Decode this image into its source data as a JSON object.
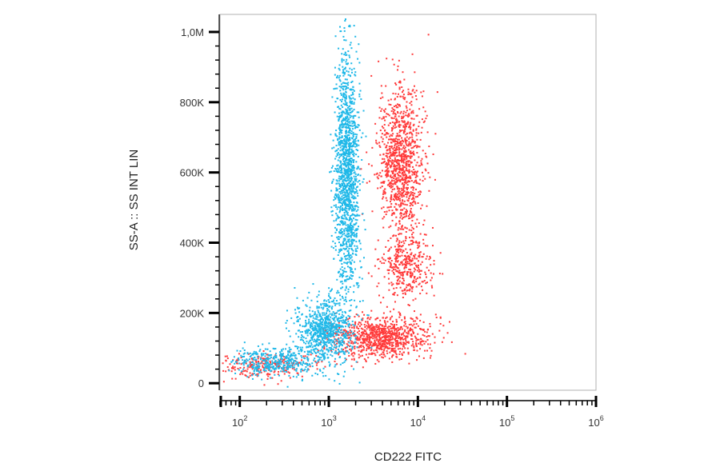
{
  "chart_data": {
    "type": "scatter",
    "title": "",
    "xlabel": "CD222 FITC",
    "ylabel": "SS-A :: SS INT LIN",
    "x_scale": "log",
    "xlim": [
      60,
      1000000
    ],
    "ylim": [
      -20000,
      1050000
    ],
    "x_ticks": [
      {
        "value": 100,
        "base": "10",
        "exp": "2"
      },
      {
        "value": 1000,
        "base": "10",
        "exp": "3"
      },
      {
        "value": 10000,
        "base": "10",
        "exp": "4"
      },
      {
        "value": 100000,
        "base": "10",
        "exp": "5"
      },
      {
        "value": 1000000,
        "base": "10",
        "exp": "6"
      }
    ],
    "y_ticks": [
      {
        "value": 0,
        "label": "0"
      },
      {
        "value": 200000,
        "label": "200K"
      },
      {
        "value": 400000,
        "label": "400K"
      },
      {
        "value": 600000,
        "label": "600K"
      },
      {
        "value": 800000,
        "label": "800K"
      },
      {
        "value": 1000000,
        "label": "1,0M"
      }
    ],
    "grid": false,
    "legend": "none",
    "series": [
      {
        "color": "#ff3b3b",
        "clusters": [
          {
            "x_center": 6500,
            "y_center": 620000,
            "x_spread": 0.13,
            "y_spread": 110000,
            "weight": 0.42
          },
          {
            "x_center": 7500,
            "y_center": 330000,
            "x_spread": 0.14,
            "y_spread": 45000,
            "weight": 0.13
          },
          {
            "x_center": 4000,
            "y_center": 130000,
            "x_spread": 0.27,
            "y_spread": 30000,
            "weight": 0.35
          },
          {
            "x_center": 180,
            "y_center": 50000,
            "x_spread": 0.3,
            "y_spread": 18000,
            "weight": 0.1
          }
        ]
      },
      {
        "color": "#1fb8e8",
        "clusters": [
          {
            "x_center": 1600,
            "y_center": 600000,
            "x_spread": 0.07,
            "y_spread": 170000,
            "weight": 0.55
          },
          {
            "x_center": 900,
            "y_center": 150000,
            "x_spread": 0.16,
            "y_spread": 45000,
            "weight": 0.3
          },
          {
            "x_center": 250,
            "y_center": 60000,
            "x_spread": 0.25,
            "y_spread": 20000,
            "weight": 0.15
          }
        ]
      }
    ]
  }
}
